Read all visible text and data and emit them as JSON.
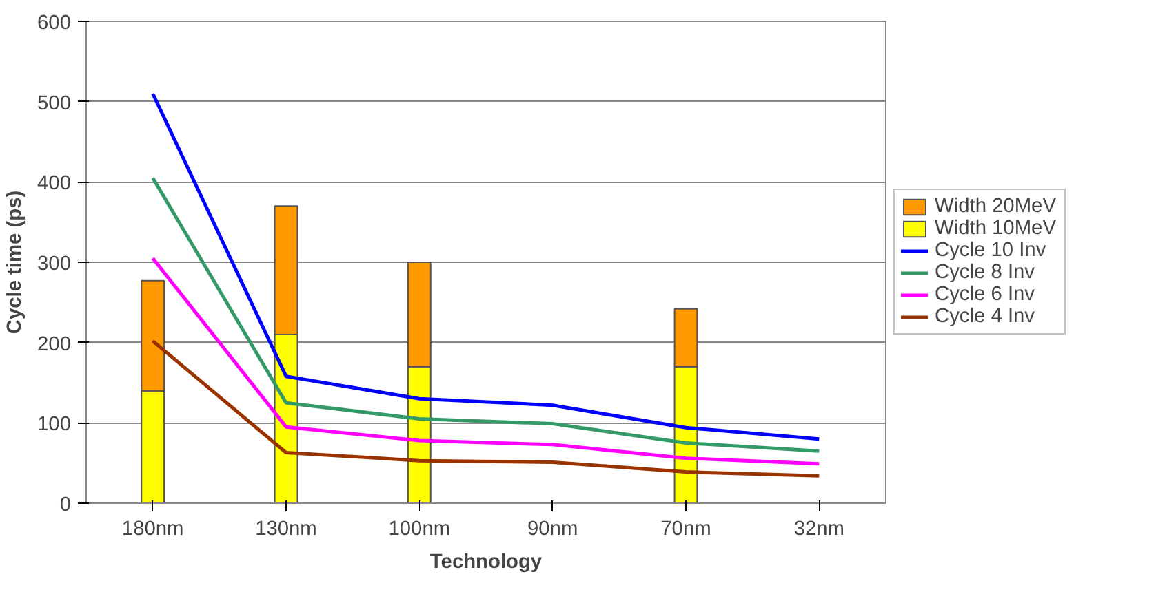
{
  "chart_data": {
    "type": "bar",
    "stacked": true,
    "xlabel": "Technology",
    "ylabel": "Cycle time (ps)",
    "categories": [
      "180nm",
      "130nm",
      "100nm",
      "90nm",
      "70nm",
      "32nm"
    ],
    "ylim": [
      0,
      600
    ],
    "yticks": [
      0,
      100,
      200,
      300,
      400,
      500,
      600
    ],
    "grid": "y",
    "legend": "right",
    "series": [
      {
        "name": "Width 10MeV",
        "color": "#ffff00",
        "values": [
          140,
          210,
          170,
          null,
          170,
          null
        ]
      },
      {
        "name": "Width 20MeV",
        "color": "#ff9900",
        "values": [
          137,
          160,
          130,
          null,
          72,
          null
        ]
      },
      {
        "name": "Cycle 10 Inv",
        "type": "line",
        "color": "#0000ff",
        "values": [
          510,
          158,
          130,
          122,
          94,
          80
        ]
      },
      {
        "name": "Cycle 8 Inv",
        "type": "line",
        "color": "#339966",
        "values": [
          405,
          125,
          105,
          99,
          75,
          65
        ]
      },
      {
        "name": "Cycle 6 Inv",
        "type": "line",
        "color": "#ff00ff",
        "values": [
          305,
          95,
          78,
          73,
          56,
          49
        ]
      },
      {
        "name": "Cycle 4 Inv",
        "type": "line",
        "color": "#993300",
        "values": [
          202,
          63,
          53,
          51,
          39,
          34
        ]
      }
    ]
  }
}
